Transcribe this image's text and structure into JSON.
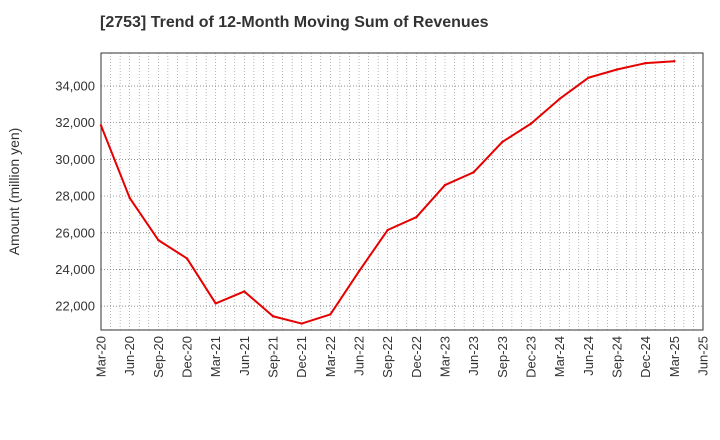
{
  "chart_data": {
    "type": "line",
    "title": "[2753]  Trend of 12-Month Moving Sum of Revenues",
    "xlabel": "",
    "ylabel": "Amount (million yen)",
    "x_tick_labels": [
      "Mar-20",
      "Jun-20",
      "Sep-20",
      "Dec-20",
      "Mar-21",
      "Jun-21",
      "Sep-21",
      "Dec-21",
      "Mar-22",
      "Jun-22",
      "Sep-22",
      "Dec-22",
      "Mar-23",
      "Jun-23",
      "Sep-23",
      "Dec-23",
      "Mar-24",
      "Jun-24",
      "Sep-24",
      "Dec-24",
      "Mar-25",
      "Jun-25"
    ],
    "y_ticks": [
      22000,
      24000,
      26000,
      28000,
      30000,
      32000,
      34000
    ],
    "y_tick_labels": [
      "22,000",
      "24,000",
      "26,000",
      "28,000",
      "30,000",
      "32,000",
      "34,000"
    ],
    "ylim": [
      20700,
      35800
    ],
    "grid": true,
    "series": [
      {
        "color": "#e60000",
        "x": [
          "Mar-20",
          "Jun-20",
          "Sep-20",
          "Dec-20",
          "Mar-21",
          "Jun-21",
          "Sep-21",
          "Dec-21",
          "Mar-22",
          "Jun-22",
          "Sep-22",
          "Dec-22",
          "Mar-23",
          "Jun-23",
          "Sep-23",
          "Dec-23",
          "Mar-24",
          "Jun-24",
          "Sep-24",
          "Dec-24",
          "Mar-25"
        ],
        "values": [
          31850,
          27900,
          25600,
          24600,
          22150,
          22800,
          21450,
          21050,
          21550,
          23900,
          26150,
          26850,
          28600,
          29300,
          30950,
          31950,
          33300,
          34450,
          34900,
          35250,
          35350
        ]
      }
    ]
  }
}
